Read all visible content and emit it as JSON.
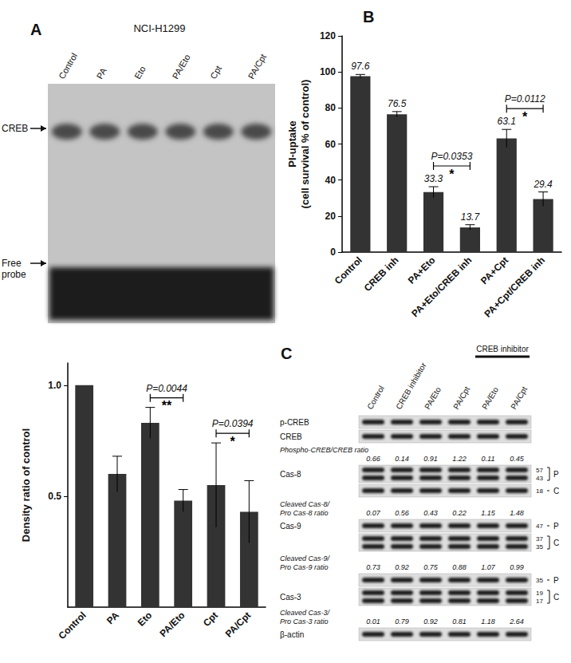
{
  "figure": {
    "panel_labels": [
      "A",
      "B",
      "C"
    ]
  },
  "gel": {
    "cell_line": "NCI-H1299",
    "lanes": [
      "Control",
      "PA",
      "Eto",
      "PA/Eto",
      "Cpt",
      "PA/Cpt"
    ],
    "band_labels": [
      "CREB",
      "Free\nprobe"
    ]
  },
  "chart_data": [
    {
      "type": "bar",
      "categories": [
        "Control",
        "PA",
        "Eto",
        "PA/Eto",
        "Cpt",
        "PA/Cpt"
      ],
      "values": [
        1.0,
        0.6,
        0.83,
        0.48,
        0.55,
        0.43
      ],
      "errors": [
        0,
        0.08,
        0.07,
        0.05,
        0.19,
        0.14
      ],
      "color": "#333333",
      "ylabel": "Density ratio of control",
      "ylim": [
        0,
        1.1
      ],
      "yticks": [
        0.5,
        {
          "value": 1,
          "label": "1.0"
        }
      ],
      "grid": false,
      "data_labels": false,
      "annotations": [
        {
          "from": "Eto",
          "to": "PA/Eto",
          "text": "P=0.0044",
          "stars": "**"
        },
        {
          "from": "Cpt",
          "to": "PA/Cpt",
          "text": "P=0.0394",
          "stars": "*"
        }
      ]
    },
    {
      "type": "bar",
      "categories": [
        "Control",
        "CREB inh",
        "PA+Eto",
        "PA+Eto/CREB inh",
        "PA+Cpt",
        "PA+Cpt/CREB inh"
      ],
      "values": [
        97.6,
        76.5,
        33.3,
        13.7,
        63.1,
        29.4
      ],
      "errors": [
        1,
        1.5,
        3,
        1.5,
        5,
        4
      ],
      "color": "#333333",
      "ylabel": "PI-uptake\n(cell survival % of control)",
      "ylim": [
        0,
        120
      ],
      "yticks": [
        0,
        20,
        40,
        60,
        80,
        100,
        120
      ],
      "grid": false,
      "data_labels": true,
      "annotations": [
        {
          "from": "PA+Eto",
          "to": "PA+Eto/CREB inh",
          "text": "P=0.0353",
          "stars": "*"
        },
        {
          "from": "PA+Cpt",
          "to": "PA+Cpt/CREB inh",
          "text": "P=0.0112",
          "stars": "*"
        }
      ]
    }
  ],
  "blot": {
    "lanes": [
      "Control",
      "CREB inhibitor",
      "PA/Eto",
      "PA/Cpt",
      "PA/Eto",
      "PA/Cpt"
    ],
    "group": {
      "label": "CREB inhibitor",
      "lanes": [
        4,
        5
      ]
    },
    "rows": [
      {
        "label": "p-CREB"
      },
      {
        "label": "CREB"
      },
      {
        "label": "Phospho-CREB/CREB ratio",
        "values": [
          0.66,
          0.14,
          0.91,
          1.22,
          0.11,
          0.45
        ]
      },
      {
        "label": "Cas-8",
        "markers": [
          57,
          43
        ],
        "form": "P"
      },
      {
        "markers": [
          18
        ],
        "form": "C"
      },
      {
        "label": "Cleaved Cas-8/\nPro Cas-8 ratio",
        "values": [
          0.07,
          0.56,
          0.43,
          0.22,
          1.15,
          1.48
        ]
      },
      {
        "label": "Cas-9",
        "markers": [
          47
        ],
        "form": "P"
      },
      {
        "markers": [
          37,
          35
        ],
        "form": "C"
      },
      {
        "label": "Cleaved Cas-9/\nPro Cas-9 ratio",
        "values": [
          0.73,
          0.92,
          0.75,
          0.88,
          1.07,
          0.99
        ]
      },
      {
        "markers": [
          35
        ],
        "form": "P"
      },
      {
        "label": "Cas-3",
        "markers": [
          19,
          17
        ],
        "form": "C"
      },
      {
        "label": "Cleaved Cas-3/\nPro Cas-3 ratio",
        "values": [
          0.01,
          0.79,
          0.92,
          0.81,
          1.18,
          2.64
        ]
      },
      {
        "label": "β-actin"
      }
    ]
  }
}
